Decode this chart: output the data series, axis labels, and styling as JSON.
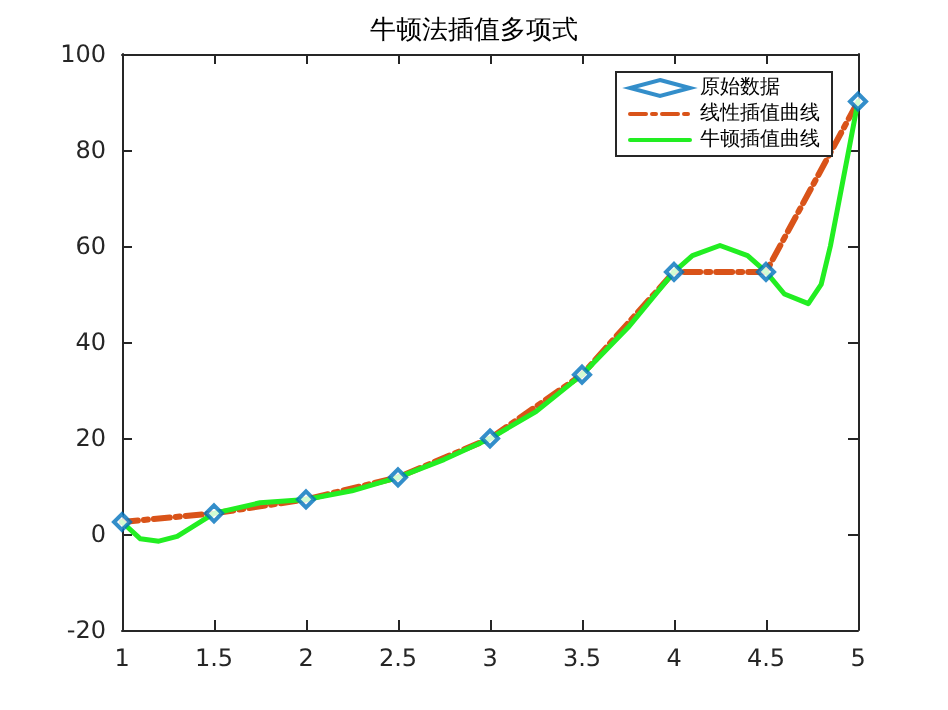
{
  "chart_data": {
    "type": "line",
    "title": "牛顿法插值多项式",
    "xlim": [
      1,
      5
    ],
    "xticks": [
      1,
      1.5,
      2,
      2.5,
      3,
      3.5,
      4,
      4.5,
      5
    ],
    "ylim": [
      -20,
      100
    ],
    "yticks": [
      -20,
      0,
      20,
      40,
      60,
      80,
      100
    ],
    "grid": false,
    "legend": "top right",
    "series": [
      {
        "name": "原始数据",
        "type": "scatter",
        "marker": "diamond",
        "color": "#0072bd",
        "x": [
          1,
          1.5,
          2,
          2.5,
          3,
          3.5,
          4,
          4.5,
          5
        ],
        "values": [
          2.5,
          4.3,
          7.2,
          11.8,
          19.9,
          33.2,
          54.6,
          54.6,
          90.1
        ]
      },
      {
        "name": "线性插值曲线",
        "marker": "none",
        "line_style": "dashed",
        "color": "#d95319",
        "x": [
          1,
          1.5,
          2,
          2.5,
          3,
          3.5,
          4,
          4.5,
          5
        ],
        "values": [
          2.5,
          4.3,
          7.2,
          11.8,
          19.9,
          33.2,
          54.6,
          54.6,
          90.1
        ]
      },
      {
        "name": "牛顿插值曲线",
        "marker": "none",
        "line_style": "solid",
        "color": "#22ee22",
        "x": [
          1,
          1.1,
          1.2,
          1.3,
          1.5,
          1.75,
          2,
          2.25,
          2.5,
          2.75,
          3,
          3.25,
          3.5,
          3.75,
          4,
          4.1,
          4.25,
          4.4,
          4.5,
          4.6,
          4.73,
          4.8,
          4.85,
          4.9,
          4.95,
          5
        ],
        "values": [
          2.5,
          -1.0,
          -1.5,
          -0.5,
          4.3,
          6.5,
          7.2,
          9.0,
          11.8,
          15.5,
          19.9,
          25.5,
          33.2,
          43.0,
          54.6,
          58.0,
          60.1,
          58.0,
          54.6,
          50.0,
          48.0,
          52.0,
          60.0,
          70.0,
          80.0,
          90.1
        ]
      }
    ]
  }
}
